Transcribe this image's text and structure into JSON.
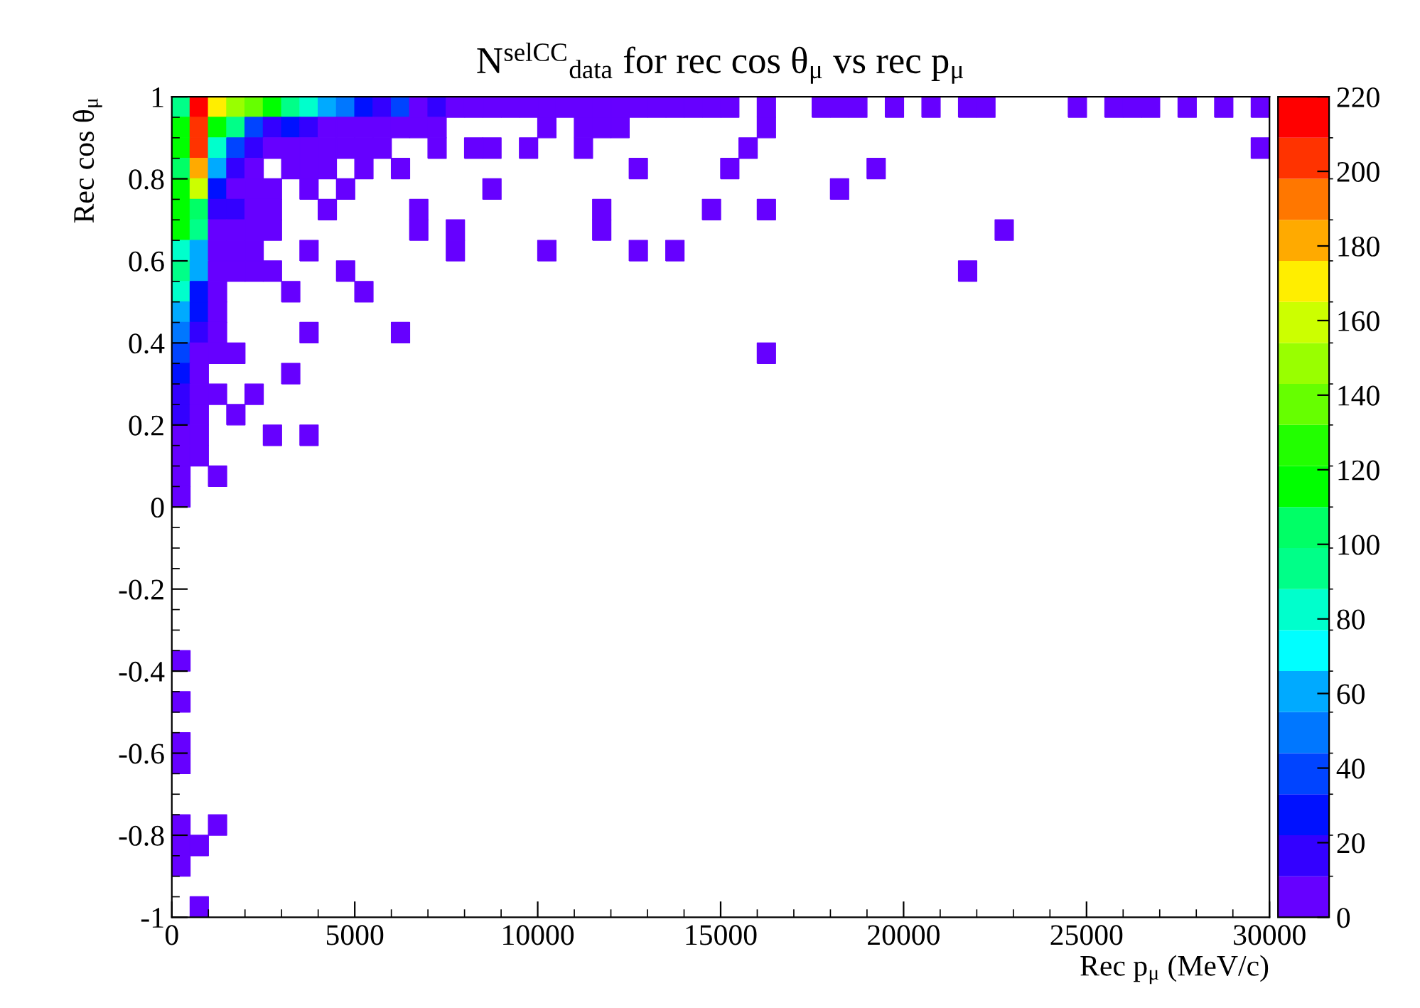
{
  "chart_data": {
    "type": "scatter",
    "marker": "square",
    "title": "N$^{selCC}$$_{data}$ for rec cos θ$_{μ}$ vs rec p$_{μ}$",
    "xlabel": "Rec p$_{μ}$ (MeV/c)",
    "ylabel": "Rec cos θ$_{μ}$",
    "xlim": [
      0,
      30000
    ],
    "xticks": [
      0,
      5000,
      10000,
      15000,
      20000,
      25000,
      30000
    ],
    "ylim": [
      -1,
      1
    ],
    "yticks": [
      -1,
      -0.8,
      -0.6,
      -0.4,
      -0.2,
      0,
      0.2,
      0.4,
      0.6,
      0.8,
      1
    ],
    "clim": [
      0,
      220
    ],
    "cticks": [
      0,
      20,
      40,
      60,
      80,
      100,
      120,
      140,
      160,
      180,
      200,
      220
    ],
    "colors": [
      "#6600ff",
      "#3300ff",
      "#0011ff",
      "#0044ff",
      "#0077ff",
      "#00aaff",
      "#00ffff",
      "#00ffcc",
      "#00ff88",
      "#00ff66",
      "#00ff00",
      "#22ff00",
      "#66ff00",
      "#99ff00",
      "#ccff00",
      "#ffee00",
      "#ffaa00",
      "#ff7700",
      "#ff3300",
      "#ff0000"
    ],
    "grid": false,
    "series": [
      {
        "x": [
          250,
          750,
          1250,
          1750,
          2250,
          2750,
          3250,
          3750,
          4250,
          4750,
          5250,
          5750,
          6250,
          6750,
          7250,
          7750,
          8250,
          8750,
          9250,
          9750,
          10250,
          10750,
          11250,
          11750,
          12250,
          12750,
          13250,
          13750,
          14250,
          14750,
          15250,
          16250,
          17750,
          18250,
          18750,
          19750,
          20750,
          21750,
          22250,
          24750,
          25750,
          26250,
          26750,
          27750,
          28750,
          29750
        ],
        "values": [
          0.975,
          0.975,
          0.975,
          0.975,
          0.975,
          0.975,
          0.975,
          0.975,
          0.975,
          0.975,
          0.975,
          0.975,
          0.975,
          0.975,
          0.975,
          0.975,
          0.975,
          0.975,
          0.975,
          0.975,
          0.975,
          0.975,
          0.975,
          0.975,
          0.975,
          0.975,
          0.975,
          0.975,
          0.975,
          0.975,
          0.975,
          0.975,
          0.975,
          0.975,
          0.975,
          0.975,
          0.975,
          0.975,
          0.975,
          0.975,
          0.975,
          0.975,
          0.975,
          0.975,
          0.975,
          0.975
        ],
        "cvalues": [
          95,
          215,
          170,
          150,
          135,
          115,
          95,
          85,
          60,
          48,
          28,
          18,
          38,
          8,
          15,
          5,
          5,
          5,
          5,
          5,
          5,
          5,
          5,
          5,
          5,
          5,
          5,
          5,
          5,
          5,
          5,
          5,
          5,
          5,
          5,
          5,
          5,
          5,
          5,
          5,
          5,
          5,
          5,
          5,
          5,
          5
        ],
        "colors": [
          "#00ff88",
          "#ff0000",
          "#ffee00",
          "#99ff00",
          "#66ff00",
          "#00ff00",
          "#00ff88",
          "#00ffcc",
          "#00aaff",
          "#0077ff",
          "#0011ff",
          "#3300ff",
          "#0044ff",
          "#6600ff",
          "#3300ff",
          "#6600ff",
          "#6600ff",
          "#6600ff",
          "#6600ff",
          "#6600ff",
          "#6600ff",
          "#6600ff",
          "#6600ff",
          "#6600ff",
          "#6600ff",
          "#6600ff",
          "#6600ff",
          "#6600ff",
          "#6600ff",
          "#6600ff",
          "#6600ff",
          "#6600ff",
          "#6600ff",
          "#6600ff",
          "#6600ff",
          "#6600ff",
          "#6600ff",
          "#6600ff",
          "#6600ff",
          "#6600ff",
          "#6600ff",
          "#6600ff",
          "#6600ff",
          "#6600ff",
          "#6600ff",
          "#6600ff"
        ]
      },
      {
        "x": [
          250,
          750,
          1250,
          1750,
          2250,
          2750,
          3250,
          3750,
          4250,
          4750,
          5250,
          5750,
          6250,
          6750,
          7250,
          10250,
          11250,
          11750,
          12250,
          16250
        ],
        "values": [
          0.925,
          0.925,
          0.925,
          0.925,
          0.925,
          0.925,
          0.925,
          0.925,
          0.925,
          0.925,
          0.925,
          0.925,
          0.925,
          0.925,
          0.925,
          0.925,
          0.925,
          0.925,
          0.925,
          0.925
        ],
        "cvalues": [
          115,
          205,
          120,
          95,
          38,
          18,
          28,
          18,
          5,
          5,
          5,
          5,
          5,
          5,
          5,
          5,
          5,
          5,
          5,
          5
        ],
        "colors": [
          "#00ff00",
          "#ff3300",
          "#00ff00",
          "#00ff88",
          "#0044ff",
          "#3300ff",
          "#0011ff",
          "#3300ff",
          "#6600ff",
          "#6600ff",
          "#6600ff",
          "#6600ff",
          "#6600ff",
          "#6600ff",
          "#6600ff",
          "#6600ff",
          "#6600ff",
          "#6600ff",
          "#6600ff",
          "#6600ff"
        ]
      },
      {
        "x": [
          250,
          750,
          1250,
          1750,
          2250,
          2750,
          3250,
          3750,
          4250,
          4750,
          5250,
          5750,
          7250,
          8250,
          8750,
          9750,
          11250,
          15750,
          29750
        ],
        "values": [
          0.875,
          0.875,
          0.875,
          0.875,
          0.875,
          0.875,
          0.875,
          0.875,
          0.875,
          0.875,
          0.875,
          0.875,
          0.875,
          0.875,
          0.875,
          0.875,
          0.875,
          0.875,
          0.875
        ],
        "cvalues": [
          115,
          200,
          85,
          38,
          18,
          5,
          5,
          5,
          5,
          5,
          5,
          5,
          5,
          5,
          5,
          5,
          5,
          5,
          5
        ],
        "colors": [
          "#00ff00",
          "#ff3300",
          "#00ffcc",
          "#0044ff",
          "#3300ff",
          "#6600ff",
          "#6600ff",
          "#6600ff",
          "#6600ff",
          "#6600ff",
          "#6600ff",
          "#6600ff",
          "#6600ff",
          "#6600ff",
          "#6600ff",
          "#6600ff",
          "#6600ff",
          "#6600ff",
          "#6600ff"
        ]
      },
      {
        "x": [
          250,
          750,
          1250,
          1750,
          2250,
          3250,
          3750,
          4250,
          5250,
          6250,
          12750,
          15250,
          19250
        ],
        "values": [
          0.825,
          0.825,
          0.825,
          0.825,
          0.825,
          0.825,
          0.825,
          0.825,
          0.825,
          0.825,
          0.825,
          0.825,
          0.825
        ],
        "cvalues": [
          100,
          180,
          62,
          18,
          5,
          5,
          5,
          5,
          5,
          5,
          5,
          5,
          5
        ],
        "colors": [
          "#00ff66",
          "#ffaa00",
          "#00aaff",
          "#3300ff",
          "#6600ff",
          "#6600ff",
          "#6600ff",
          "#6600ff",
          "#6600ff",
          "#6600ff",
          "#6600ff",
          "#6600ff",
          "#6600ff"
        ]
      },
      {
        "x": [
          250,
          750,
          1250,
          1750,
          2250,
          2750,
          3750,
          4750,
          8750,
          18250
        ],
        "values": [
          0.775,
          0.775,
          0.775,
          0.775,
          0.775,
          0.775,
          0.775,
          0.775,
          0.775,
          0.775
        ],
        "cvalues": [
          120,
          160,
          28,
          10,
          5,
          5,
          5,
          5,
          5,
          5
        ],
        "colors": [
          "#00ff00",
          "#ccff00",
          "#0011ff",
          "#6600ff",
          "#6600ff",
          "#6600ff",
          "#6600ff",
          "#6600ff",
          "#6600ff",
          "#6600ff"
        ]
      },
      {
        "x": [
          250,
          750,
          1250,
          1750,
          2250,
          2750,
          4250,
          6750,
          11750,
          14750,
          16250
        ],
        "values": [
          0.725,
          0.725,
          0.725,
          0.725,
          0.725,
          0.725,
          0.725,
          0.725,
          0.725,
          0.725,
          0.725
        ],
        "cvalues": [
          110,
          100,
          18,
          18,
          5,
          5,
          5,
          5,
          5,
          5,
          5
        ],
        "colors": [
          "#00ff00",
          "#00ff66",
          "#3300ff",
          "#3300ff",
          "#6600ff",
          "#6600ff",
          "#6600ff",
          "#6600ff",
          "#6600ff",
          "#6600ff",
          "#6600ff"
        ]
      },
      {
        "x": [
          250,
          750,
          1250,
          1750,
          2250,
          2750,
          6750,
          7750,
          11750,
          22750
        ],
        "values": [
          0.675,
          0.675,
          0.675,
          0.675,
          0.675,
          0.675,
          0.675,
          0.675,
          0.675,
          0.675
        ],
        "cvalues": [
          110,
          95,
          5,
          5,
          5,
          5,
          5,
          5,
          5,
          5
        ],
        "colors": [
          "#00ff00",
          "#00ff88",
          "#6600ff",
          "#6600ff",
          "#6600ff",
          "#6600ff",
          "#6600ff",
          "#6600ff",
          "#6600ff",
          "#6600ff"
        ]
      },
      {
        "x": [
          250,
          750,
          1250,
          1750,
          2250,
          3750,
          7750,
          10250,
          12750,
          13750
        ],
        "values": [
          0.625,
          0.625,
          0.625,
          0.625,
          0.625,
          0.625,
          0.625,
          0.625,
          0.625,
          0.625
        ],
        "cvalues": [
          85,
          60,
          5,
          5,
          5,
          5,
          5,
          5,
          5,
          5
        ],
        "colors": [
          "#00ffcc",
          "#00aaff",
          "#6600ff",
          "#6600ff",
          "#6600ff",
          "#6600ff",
          "#6600ff",
          "#6600ff",
          "#6600ff",
          "#6600ff"
        ]
      },
      {
        "x": [
          250,
          750,
          1250,
          1750,
          2250,
          2750,
          4750,
          21750
        ],
        "values": [
          0.575,
          0.575,
          0.575,
          0.575,
          0.575,
          0.575,
          0.575,
          0.575
        ],
        "cvalues": [
          95,
          58,
          5,
          5,
          5,
          5,
          5,
          5
        ],
        "colors": [
          "#00ff88",
          "#00aaff",
          "#6600ff",
          "#6600ff",
          "#6600ff",
          "#6600ff",
          "#6600ff",
          "#6600ff"
        ]
      },
      {
        "x": [
          250,
          750,
          1250,
          3250,
          5250
        ],
        "values": [
          0.525,
          0.525,
          0.525,
          0.525,
          0.525
        ],
        "cvalues": [
          85,
          28,
          5,
          5,
          5
        ],
        "colors": [
          "#00ffcc",
          "#0011ff",
          "#6600ff",
          "#6600ff",
          "#6600ff"
        ]
      },
      {
        "x": [
          250,
          750,
          1250
        ],
        "values": [
          0.475,
          0.475,
          0.475
        ],
        "cvalues": [
          62,
          25,
          5
        ],
        "colors": [
          "#00aaff",
          "#0011ff",
          "#6600ff"
        ]
      },
      {
        "x": [
          250,
          750,
          1250,
          3750,
          6250
        ],
        "values": [
          0.425,
          0.425,
          0.425,
          0.425,
          0.425
        ],
        "cvalues": [
          45,
          18,
          5,
          5,
          5
        ],
        "colors": [
          "#0077ff",
          "#3300ff",
          "#6600ff",
          "#6600ff",
          "#6600ff"
        ]
      },
      {
        "x": [
          250,
          750,
          1250,
          1750,
          16250
        ],
        "values": [
          0.375,
          0.375,
          0.375,
          0.375,
          0.375
        ],
        "cvalues": [
          40,
          5,
          5,
          5,
          5
        ],
        "colors": [
          "#0044ff",
          "#6600ff",
          "#6600ff",
          "#6600ff",
          "#6600ff"
        ]
      },
      {
        "x": [
          250,
          750,
          3250
        ],
        "values": [
          0.325,
          0.325,
          0.325
        ],
        "cvalues": [
          30,
          5,
          5
        ],
        "colors": [
          "#0011ff",
          "#6600ff",
          "#6600ff"
        ]
      },
      {
        "x": [
          250,
          750,
          1250,
          2250
        ],
        "values": [
          0.275,
          0.275,
          0.275,
          0.275
        ],
        "cvalues": [
          20,
          5,
          5,
          5
        ],
        "colors": [
          "#3300ff",
          "#6600ff",
          "#6600ff",
          "#6600ff"
        ]
      },
      {
        "x": [
          250,
          750,
          1750
        ],
        "values": [
          0.225,
          0.225,
          0.225
        ],
        "cvalues": [
          18,
          5,
          5
        ],
        "colors": [
          "#3300ff",
          "#6600ff",
          "#6600ff"
        ]
      },
      {
        "x": [
          250,
          750,
          2750,
          3750
        ],
        "values": [
          0.175,
          0.175,
          0.175,
          0.175
        ],
        "cvalues": [
          5,
          5,
          5,
          5
        ],
        "colors": [
          "#6600ff",
          "#6600ff",
          "#6600ff",
          "#6600ff"
        ]
      },
      {
        "x": [
          250,
          750
        ],
        "values": [
          0.125,
          0.125
        ],
        "cvalues": [
          5,
          5
        ],
        "colors": [
          "#6600ff",
          "#6600ff"
        ]
      },
      {
        "x": [
          250,
          1250
        ],
        "values": [
          0.075,
          0.075
        ],
        "cvalues": [
          5,
          5
        ],
        "colors": [
          "#6600ff",
          "#6600ff"
        ]
      },
      {
        "x": [
          250,
          250,
          250,
          250,
          250,
          250,
          1250,
          250,
          750,
          250,
          750
        ],
        "values": [
          0.025,
          -0.375,
          -0.475,
          -0.575,
          -0.625,
          -0.775,
          -0.775,
          -0.825,
          -0.825,
          -0.875,
          -0.975
        ],
        "cvalues": [
          5,
          5,
          5,
          5,
          5,
          5,
          5,
          5,
          5,
          5,
          5
        ],
        "colors": [
          "#6600ff",
          "#6600ff",
          "#6600ff",
          "#6600ff",
          "#6600ff",
          "#6600ff",
          "#6600ff",
          "#6600ff",
          "#6600ff",
          "#6600ff",
          "#6600ff"
        ]
      }
    ]
  }
}
